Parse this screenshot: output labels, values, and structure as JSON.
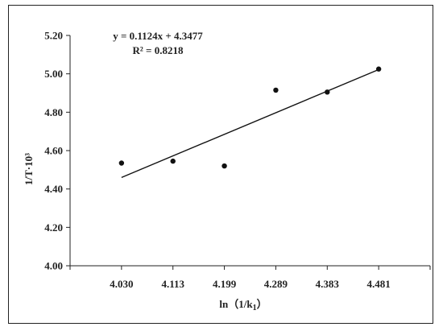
{
  "chart_data": {
    "type": "scatter",
    "xlabel": "ln（1/k1）",
    "xlabel_main": "ln（1/k",
    "xlabel_sub": "1",
    "xlabel_end": "）",
    "ylabel": "1/T·10³",
    "x_ticks": [
      "4.030",
      "4.113",
      "4.199",
      "4.289",
      "4.383",
      "4.481"
    ],
    "y_ticks": [
      "4.00",
      "4.20",
      "4.40",
      "4.60",
      "4.80",
      "5.00",
      "5.20"
    ],
    "ylim": [
      4.0,
      5.2
    ],
    "grid": false,
    "points": [
      {
        "x": "4.030",
        "y": 4.535
      },
      {
        "x": "4.113",
        "y": 4.545
      },
      {
        "x": "4.199",
        "y": 4.52
      },
      {
        "x": "4.289",
        "y": 4.915
      },
      {
        "x": "4.383",
        "y": 4.905
      },
      {
        "x": "4.481",
        "y": 5.025
      }
    ],
    "trendline": {
      "equation": "y = 0.1124x + 4.3477",
      "r2_label": "R² = 0.8218",
      "slope": 0.1124,
      "intercept": 4.3477,
      "x_index_start": 1,
      "x_index_end": 6
    }
  }
}
